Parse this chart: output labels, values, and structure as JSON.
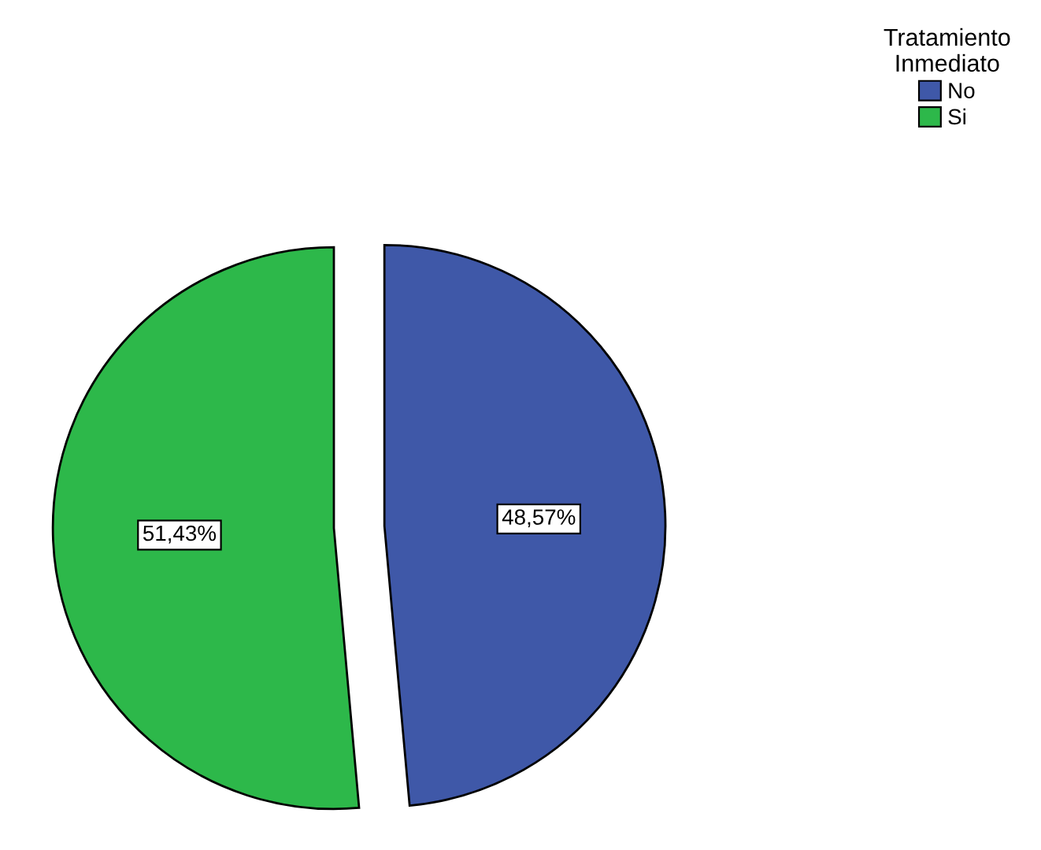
{
  "chart_data": {
    "type": "pie",
    "legend_title": "Tratamiento\nInmediato",
    "legend": "top right",
    "categories": [
      "No",
      "Si"
    ],
    "values": [
      48.57,
      51.43
    ],
    "colors": [
      "#3f58a8",
      "#2db84a"
    ],
    "value_labels": [
      "48,57%",
      "51,43%"
    ]
  }
}
